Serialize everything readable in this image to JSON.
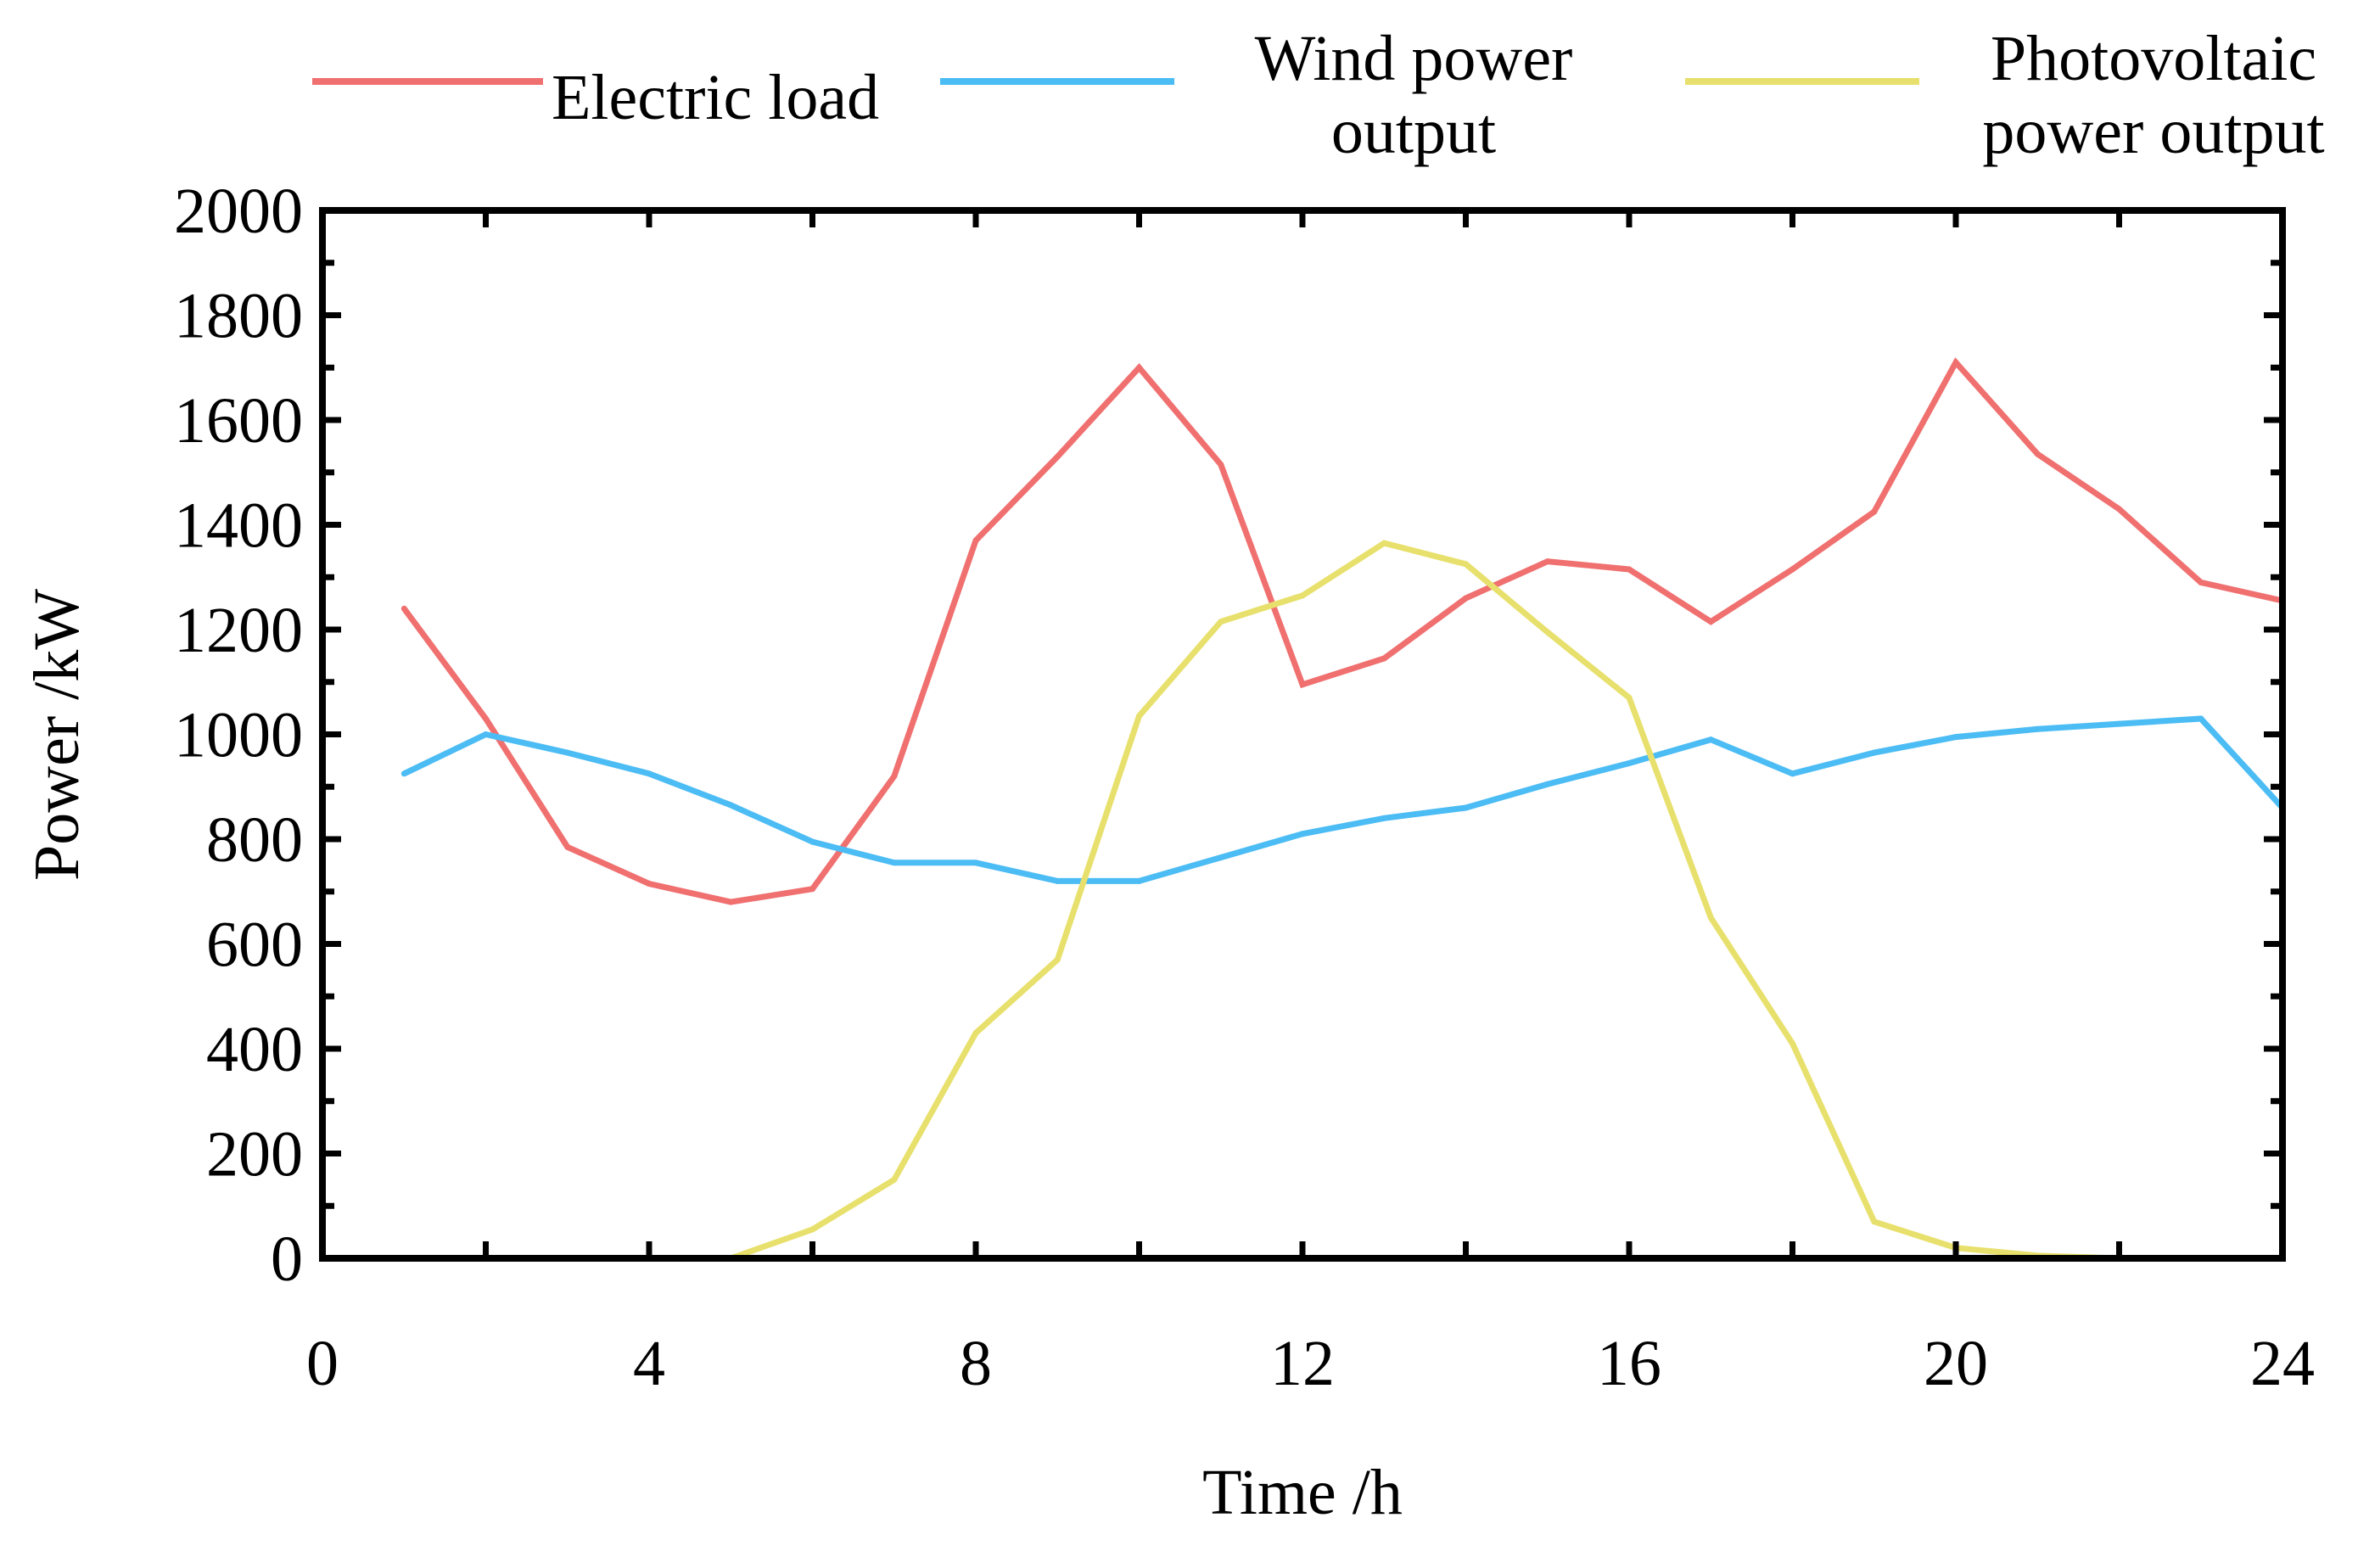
{
  "chart_data": {
    "type": "line",
    "title": "",
    "xlabel": "Time /h",
    "ylabel": "Power /kW",
    "xlim": [
      0,
      24
    ],
    "ylim": [
      0,
      2000
    ],
    "xticks": [
      0,
      4,
      8,
      12,
      16,
      20,
      24
    ],
    "yticks": [
      0,
      200,
      400,
      600,
      800,
      1000,
      1200,
      1400,
      1600,
      1800,
      2000
    ],
    "grid": false,
    "legend_position": "top",
    "series": [
      {
        "name": "Electric load",
        "color": "#f07070",
        "points": [
          [
            1,
            1240
          ],
          [
            2,
            1030
          ],
          [
            3,
            785
          ],
          [
            4,
            715
          ],
          [
            5,
            680
          ],
          [
            6,
            705
          ],
          [
            7,
            920
          ],
          [
            8,
            1370
          ],
          [
            9,
            1530
          ],
          [
            10,
            1700
          ],
          [
            11,
            1515
          ],
          [
            12,
            1095
          ],
          [
            13,
            1145
          ],
          [
            14,
            1260
          ],
          [
            15,
            1330
          ],
          [
            16,
            1315
          ],
          [
            17,
            1215
          ],
          [
            18,
            1315
          ],
          [
            19,
            1425
          ],
          [
            20,
            1710
          ],
          [
            21,
            1535
          ],
          [
            22,
            1430
          ],
          [
            23,
            1290
          ],
          [
            24,
            1255
          ]
        ]
      },
      {
        "name": "Wind power output",
        "color": "#4cbcf4",
        "points": [
          [
            1,
            925
          ],
          [
            2,
            1000
          ],
          [
            3,
            965
          ],
          [
            4,
            925
          ],
          [
            5,
            865
          ],
          [
            6,
            795
          ],
          [
            7,
            755
          ],
          [
            8,
            755
          ],
          [
            9,
            720
          ],
          [
            10,
            720
          ],
          [
            11,
            765
          ],
          [
            12,
            810
          ],
          [
            13,
            840
          ],
          [
            14,
            860
          ],
          [
            15,
            905
          ],
          [
            16,
            945
          ],
          [
            17,
            990
          ],
          [
            18,
            925
          ],
          [
            19,
            965
          ],
          [
            20,
            995
          ],
          [
            21,
            1010
          ],
          [
            22,
            1020
          ],
          [
            23,
            1030
          ],
          [
            24,
            860
          ]
        ]
      },
      {
        "name": "Photovoltaic power output",
        "color": "#e8e06c",
        "points": [
          [
            5,
            0
          ],
          [
            6,
            55
          ],
          [
            7,
            150
          ],
          [
            8,
            430
          ],
          [
            9,
            570
          ],
          [
            10,
            1035
          ],
          [
            11,
            1215
          ],
          [
            12,
            1265
          ],
          [
            13,
            1365
          ],
          [
            14,
            1325
          ],
          [
            15,
            1195
          ],
          [
            16,
            1070
          ],
          [
            17,
            650
          ],
          [
            18,
            410
          ],
          [
            19,
            70
          ],
          [
            20,
            20
          ],
          [
            21,
            5
          ],
          [
            22,
            0
          ]
        ]
      }
    ]
  }
}
